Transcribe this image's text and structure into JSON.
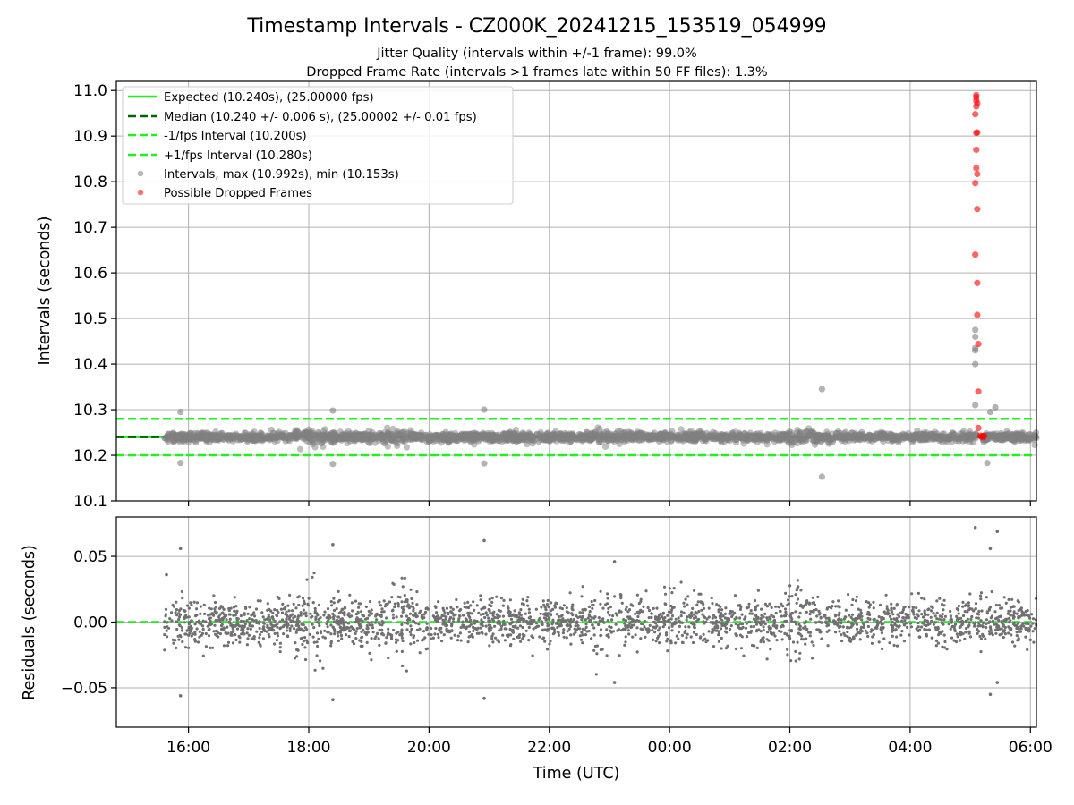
{
  "chart_data": [
    {
      "type": "scatter",
      "title": "Timestamp Intervals - CZ000K_20241215_153519_054999",
      "subtitle_lines": [
        "Jitter Quality (intervals within +/-1 frame): 99.0%",
        "Dropped Frame Rate (intervals >1 frames late within 50 FF files): 1.3%"
      ],
      "ylabel": "Intervals (seconds)",
      "ylim": [
        10.1,
        11.02
      ],
      "xlim_hours": [
        14.8,
        30.1
      ],
      "yticks": [
        "10.1",
        "10.2",
        "10.3",
        "10.4",
        "10.5",
        "10.6",
        "10.7",
        "10.8",
        "10.9",
        "11.0"
      ],
      "ytick_values": [
        10.1,
        10.2,
        10.3,
        10.4,
        10.5,
        10.6,
        10.7,
        10.8,
        10.9,
        11.0
      ],
      "grid": true,
      "legend_position": "top-left",
      "lines": [
        {
          "name": "Expected (10.240s), (25.00000 fps)",
          "y": 10.24,
          "color": "#22ee22",
          "style": "solid"
        },
        {
          "name": "Median (10.240 +/- 0.006 s), (25.00002 +/- 0.01 fps)",
          "y": 10.24,
          "color": "#006400",
          "style": "dashed"
        },
        {
          "name": "-1/fps Interval (10.200s)",
          "y": 10.2,
          "color": "#22ee22",
          "style": "dashed"
        },
        {
          "name": "+1/fps Interval (10.280s)",
          "y": 10.28,
          "color": "#22ee22",
          "style": "dashed"
        }
      ],
      "series": [
        {
          "name": "Intervals, max (10.992s), min (10.153s)",
          "color": "#808080",
          "center": 10.24,
          "x_range_hours": [
            15.6,
            30.1
          ],
          "gap_hours": [
            29.1,
            29.2
          ],
          "notable_points": [
            {
              "x": "15:52",
              "y": 10.295
            },
            {
              "x": "15:52",
              "y": 10.183
            },
            {
              "x": "18:24",
              "y": 10.298
            },
            {
              "x": "18:24",
              "y": 10.181
            },
            {
              "x": "20:55",
              "y": 10.3
            },
            {
              "x": "20:55",
              "y": 10.182
            },
            {
              "x": "02:32",
              "y": 10.345
            },
            {
              "x": "02:32",
              "y": 10.153
            },
            {
              "x": "05:05",
              "y": 10.475
            },
            {
              "x": "05:05",
              "y": 10.46
            },
            {
              "x": "05:05",
              "y": 10.435
            },
            {
              "x": "05:05",
              "y": 10.43
            },
            {
              "x": "05:05",
              "y": 10.4
            },
            {
              "x": "05:05",
              "y": 10.31
            },
            {
              "x": "05:20",
              "y": 10.295
            },
            {
              "x": "05:25",
              "y": 10.305
            },
            {
              "x": "05:17",
              "y": 10.183
            }
          ]
        },
        {
          "name": "Possible Dropped Frames",
          "color": "#ff0000",
          "points": [
            {
              "x": "05:06",
              "y": 10.99
            },
            {
              "x": "05:06",
              "y": 10.985
            },
            {
              "x": "05:06",
              "y": 10.978
            },
            {
              "x": "05:07",
              "y": 10.972
            },
            {
              "x": "05:06",
              "y": 10.965
            },
            {
              "x": "05:05",
              "y": 10.948
            },
            {
              "x": "05:07",
              "y": 10.908
            },
            {
              "x": "05:06",
              "y": 10.907
            },
            {
              "x": "05:06",
              "y": 10.87
            },
            {
              "x": "05:06",
              "y": 10.83
            },
            {
              "x": "05:07",
              "y": 10.817
            },
            {
              "x": "05:05",
              "y": 10.797
            },
            {
              "x": "05:07",
              "y": 10.74
            },
            {
              "x": "05:05",
              "y": 10.64
            },
            {
              "x": "05:07",
              "y": 10.578
            },
            {
              "x": "05:07",
              "y": 10.508
            },
            {
              "x": "05:08",
              "y": 10.444
            },
            {
              "x": "05:08",
              "y": 10.34
            },
            {
              "x": "05:08",
              "y": 10.26
            },
            {
              "x": "05:10",
              "y": 10.243
            },
            {
              "x": "05:11",
              "y": 10.241
            },
            {
              "x": "05:12",
              "y": 10.242
            },
            {
              "x": "05:13",
              "y": 10.24
            },
            {
              "x": "05:14",
              "y": 10.243
            }
          ]
        }
      ]
    },
    {
      "type": "scatter",
      "xlabel": "Time (UTC)",
      "ylabel": "Residuals (seconds)",
      "ylim": [
        -0.08,
        0.08
      ],
      "xlim_hours": [
        14.8,
        30.1
      ],
      "yticks": [
        "−0.05",
        "0.00",
        "0.05"
      ],
      "ytick_values": [
        -0.05,
        0.0,
        0.05
      ],
      "xticks": [
        "16:00",
        "18:00",
        "20:00",
        "22:00",
        "00:00",
        "02:00",
        "04:00",
        "06:00"
      ],
      "xtick_hours": [
        16,
        18,
        20,
        22,
        24,
        26,
        28,
        30
      ],
      "grid": true,
      "lines": [
        {
          "y": 0.0,
          "color": "#006400",
          "style": "dashed"
        },
        {
          "y": 0.0,
          "color": "#22ee22",
          "style": "dashed"
        }
      ],
      "series": [
        {
          "color": "#808080",
          "center": 0.0,
          "x_range_hours": [
            15.6,
            30.1
          ],
          "notable_points": [
            {
              "x": "15:38",
              "y": 0.036
            },
            {
              "x": "15:52",
              "y": 0.056
            },
            {
              "x": "15:52",
              "y": -0.056
            },
            {
              "x": "18:24",
              "y": 0.059
            },
            {
              "x": "18:24",
              "y": -0.059
            },
            {
              "x": "20:55",
              "y": 0.062
            },
            {
              "x": "20:55",
              "y": -0.058
            },
            {
              "x": "23:05",
              "y": 0.046
            },
            {
              "x": "23:05",
              "y": -0.046
            },
            {
              "x": "05:05",
              "y": 0.072
            },
            {
              "x": "05:20",
              "y": 0.056
            },
            {
              "x": "05:27",
              "y": 0.069
            },
            {
              "x": "05:20",
              "y": -0.055
            },
            {
              "x": "05:27",
              "y": -0.046
            }
          ]
        }
      ]
    }
  ]
}
